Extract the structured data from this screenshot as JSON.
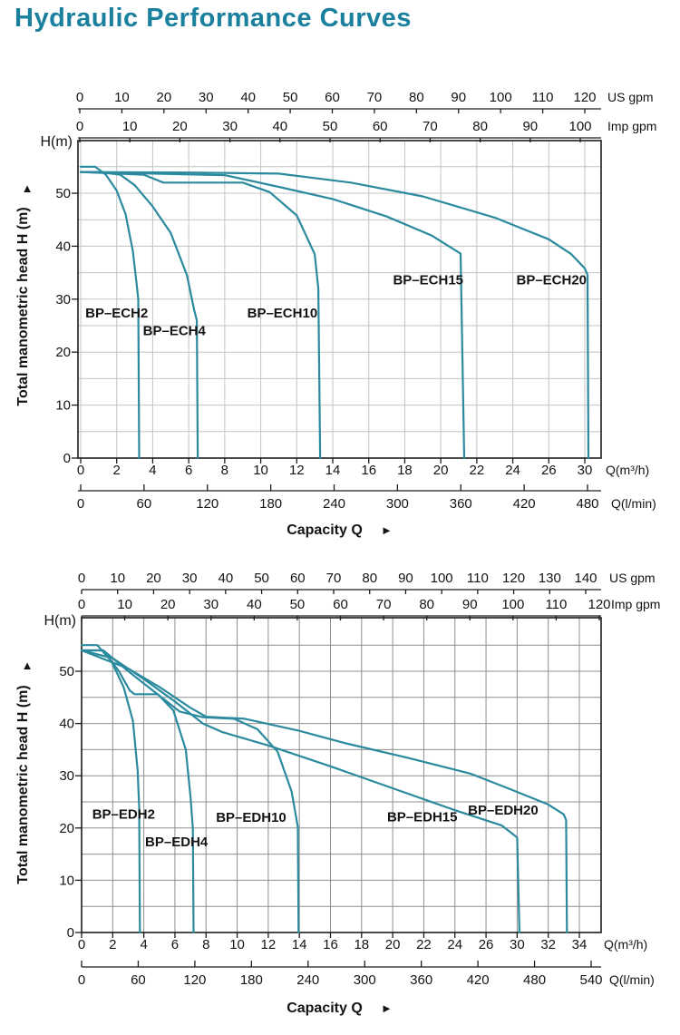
{
  "title": "Hydraulic Performance Curves",
  "colors": {
    "title": "#1b809e",
    "curve": "#2b8a9e",
    "axis": "#1c1c1c",
    "text": "#141414",
    "grid_top_chart": "#c3c3c3",
    "grid_bottom_chart": "#8f8f8f"
  },
  "chart_data": [
    {
      "type": "line",
      "series_family": "BP-ECH",
      "y_axis": {
        "corner_label": "H(m)",
        "title": "Total manometric head H (m)",
        "arrow": "▲",
        "ticks": [
          0,
          10,
          20,
          30,
          40,
          50
        ],
        "minor_step": 5,
        "minor_max": 55
      },
      "top_axes": [
        {
          "unit": "US gpm",
          "ticks": [
            0,
            10,
            20,
            30,
            40,
            50,
            60,
            70,
            80,
            90,
            100,
            110,
            120
          ]
        },
        {
          "unit": "Imp gpm",
          "ticks": [
            0,
            10,
            20,
            30,
            40,
            50,
            60,
            70,
            80,
            90,
            100
          ]
        }
      ],
      "bottom_axes": [
        {
          "unit": "Q(m³/h)",
          "ticks": [
            0,
            2,
            4,
            6,
            8,
            10,
            12,
            14,
            16,
            18,
            20,
            22,
            24,
            26,
            30
          ]
        },
        {
          "unit": "Q(l/min)",
          "ticks": [
            0,
            60,
            120,
            180,
            240,
            300,
            360,
            420,
            480
          ]
        }
      ],
      "x_title": {
        "label": "Capacity Q",
        "arrow": "►"
      },
      "curves": [
        {
          "label": "BP–ECH2",
          "label_at": [
            2.0,
            26.5
          ],
          "points_q_h": [
            [
              0,
              55
            ],
            [
              0.8,
              55
            ],
            [
              1.4,
              53.5
            ],
            [
              2,
              50.5
            ],
            [
              2.5,
              46
            ],
            [
              2.9,
              39
            ],
            [
              3.1,
              33
            ],
            [
              3.2,
              30
            ],
            [
              3.25,
              0
            ]
          ]
        },
        {
          "label": "BP–ECH4",
          "label_at": [
            5.2,
            23.2
          ],
          "points_q_h": [
            [
              0,
              54
            ],
            [
              1,
              54
            ],
            [
              2.2,
              53.5
            ],
            [
              3,
              51.5
            ],
            [
              4,
              47.5
            ],
            [
              5,
              42.5
            ],
            [
              5.9,
              34.5
            ],
            [
              6.3,
              28
            ],
            [
              6.45,
              26
            ],
            [
              6.5,
              0
            ]
          ]
        },
        {
          "label": "BP–ECH10",
          "label_at": [
            11.2,
            26.5
          ],
          "points_q_h": [
            [
              0,
              54
            ],
            [
              3.5,
              53.5
            ],
            [
              4.6,
              52
            ],
            [
              9,
              52
            ],
            [
              10.5,
              50.2
            ],
            [
              12,
              45.8
            ],
            [
              13,
              38.5
            ],
            [
              13.2,
              32
            ],
            [
              13.3,
              0
            ]
          ]
        },
        {
          "label": "BP–ECH15",
          "label_at": [
            19.3,
            32.8
          ],
          "points_q_h": [
            [
              0,
              54
            ],
            [
              4,
              53.7
            ],
            [
              8,
              53.4
            ],
            [
              11,
              51.2
            ],
            [
              14,
              48.9
            ],
            [
              17,
              45.6
            ],
            [
              19.5,
              42
            ],
            [
              21.1,
              38.6
            ],
            [
              21.3,
              0
            ]
          ]
        },
        {
          "label": "BP–ECH20",
          "label_at": [
            26.3,
            32.8
          ],
          "points_q_h": [
            [
              0,
              54
            ],
            [
              6,
              53.9
            ],
            [
              11,
              53.7
            ],
            [
              15,
              52
            ],
            [
              19,
              49.4
            ],
            [
              23,
              45.4
            ],
            [
              26,
              41.3
            ],
            [
              28.5,
              38.5
            ],
            [
              30,
              35.8
            ],
            [
              30.3,
              34.6
            ],
            [
              30.4,
              0
            ]
          ]
        }
      ]
    },
    {
      "type": "line",
      "series_family": "BP-EDH",
      "y_axis": {
        "corner_label": "H(m)",
        "title": "Total manometric head H (m)",
        "arrow": "▲",
        "ticks": [
          0,
          10,
          20,
          30,
          40,
          50
        ],
        "minor_step": 5,
        "minor_max": 55
      },
      "top_axes": [
        {
          "unit": "US gpm",
          "ticks": [
            0,
            10,
            20,
            30,
            40,
            50,
            60,
            70,
            80,
            90,
            100,
            110,
            120,
            130,
            140
          ]
        },
        {
          "unit": "Imp gpm",
          "ticks": [
            0,
            10,
            20,
            30,
            40,
            50,
            60,
            70,
            80,
            90,
            100,
            110,
            120
          ]
        }
      ],
      "bottom_axes": [
        {
          "unit": "Q(m³/h)",
          "ticks": [
            0,
            2,
            4,
            6,
            8,
            10,
            12,
            14,
            16,
            18,
            20,
            22,
            24,
            26,
            30,
            32,
            34
          ]
        },
        {
          "unit": "Q(l/min)",
          "ticks": [
            0,
            60,
            120,
            180,
            240,
            300,
            360,
            420,
            480,
            540
          ]
        }
      ],
      "x_title": {
        "label": "Capacity Q",
        "arrow": "►"
      },
      "curves": [
        {
          "label": "BP–EDH2",
          "label_at": [
            2.7,
            21.8
          ],
          "points_q_h": [
            [
              0,
              55
            ],
            [
              1,
              55
            ],
            [
              1.9,
              52
            ],
            [
              2.7,
              47
            ],
            [
              3.3,
              40.5
            ],
            [
              3.6,
              31
            ],
            [
              3.7,
              24
            ],
            [
              3.75,
              0
            ]
          ]
        },
        {
          "label": "BP–EDH4",
          "label_at": [
            6.1,
            16.5
          ],
          "points_q_h": [
            [
              0,
              54
            ],
            [
              1.4,
              54
            ],
            [
              2.4,
              50
            ],
            [
              3.1,
              46.3
            ],
            [
              3.4,
              45.6
            ],
            [
              4.9,
              45.6
            ],
            [
              5.9,
              42.5
            ],
            [
              6.7,
              35
            ],
            [
              7.0,
              26
            ],
            [
              7.15,
              20
            ],
            [
              7.2,
              0
            ]
          ]
        },
        {
          "label": "BP–EDH10",
          "label_at": [
            10.9,
            21.2
          ],
          "points_q_h": [
            [
              0,
              54
            ],
            [
              1.4,
              54
            ],
            [
              3,
              50
            ],
            [
              4.8,
              45.8
            ],
            [
              6.3,
              42.3
            ],
            [
              7.8,
              41.2
            ],
            [
              9.8,
              40.9
            ],
            [
              11.3,
              38.9
            ],
            [
              12.6,
              34.6
            ],
            [
              13.5,
              27
            ],
            [
              13.9,
              20.2
            ],
            [
              13.95,
              0
            ]
          ]
        },
        {
          "label": "BP–EDH15",
          "label_at": [
            21.9,
            21.3
          ],
          "points_q_h": [
            [
              0,
              54
            ],
            [
              2,
              52.5
            ],
            [
              4,
              48.5
            ],
            [
              6,
              44.2
            ],
            [
              7.8,
              40
            ],
            [
              9,
              38.4
            ],
            [
              12,
              35.8
            ],
            [
              16,
              31.8
            ],
            [
              20,
              27.6
            ],
            [
              24,
              23.4
            ],
            [
              28,
              20.5
            ],
            [
              30,
              18.2
            ],
            [
              30.15,
              0
            ]
          ]
        },
        {
          "label": "BP–EDH20",
          "label_at": [
            28.2,
            22.6
          ],
          "points_q_h": [
            [
              0,
              54
            ],
            [
              3,
              50.5
            ],
            [
              5,
              47
            ],
            [
              7,
              43
            ],
            [
              8,
              41.3
            ],
            [
              10.5,
              40.9
            ],
            [
              14,
              38.6
            ],
            [
              17,
              36.2
            ],
            [
              21,
              33.4
            ],
            [
              25,
              30.4
            ],
            [
              29,
              27.5
            ],
            [
              32,
              24.5
            ],
            [
              33,
              22.6
            ],
            [
              33.15,
              21.5
            ],
            [
              33.2,
              0
            ]
          ]
        }
      ]
    }
  ]
}
